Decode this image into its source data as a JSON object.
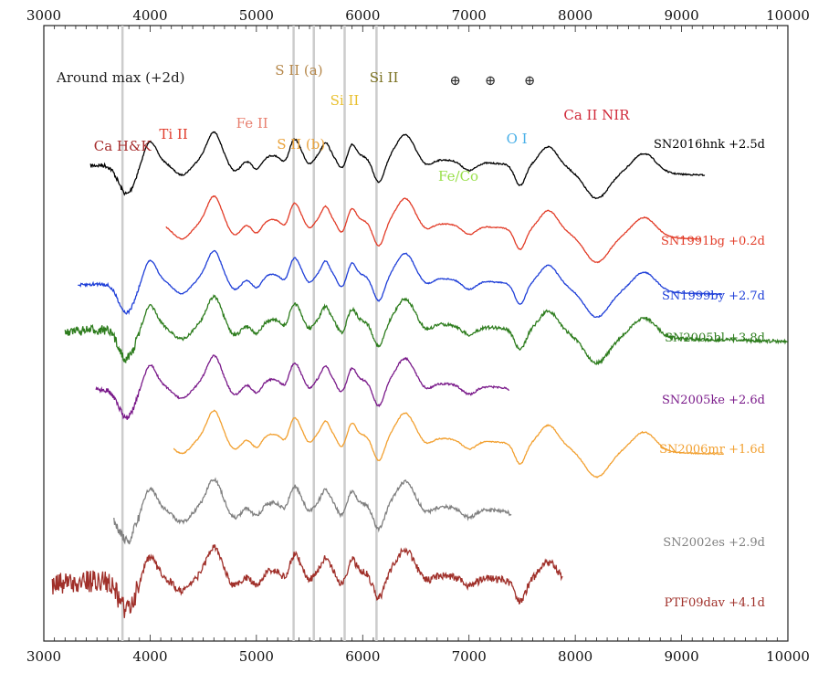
{
  "chart_data": {
    "type": "line",
    "title": "",
    "xlabel": "",
    "ylabel": "",
    "xlim": [
      3000,
      10000
    ],
    "x_ticks": [
      3000,
      4000,
      5000,
      6000,
      7000,
      8000,
      9000,
      10000
    ],
    "x_tick_labels": [
      "3000",
      "4000",
      "5000",
      "6000",
      "7000",
      "8000",
      "9000",
      "10000"
    ],
    "y_ticks_shown": false,
    "grid": false,
    "header_text": "Around max (+2d)",
    "telluric_symbol": "⊕",
    "telluric_x": [
      6870,
      7200,
      7570
    ],
    "vertical_lines_x": [
      3740,
      5350,
      5540,
      5830,
      6130
    ],
    "line_ids": [
      {
        "text": "Ca H&K",
        "x": 3740,
        "color": "#a52a2a"
      },
      {
        "text": "Ti II",
        "x": 4220,
        "color": "#e03a2a"
      },
      {
        "text": "Fe II",
        "x": 4960,
        "color": "#e88070"
      },
      {
        "text": "S II (a)",
        "x": 5400,
        "color": "#b5874a"
      },
      {
        "text": "S II (b)",
        "x": 5420,
        "color": "#e9a23b"
      },
      {
        "text": "Si II",
        "x": 5830,
        "color": "#e9c030"
      },
      {
        "text": "Si II",
        "x": 6200,
        "color": "#7a7020"
      },
      {
        "text": "Fe/Co",
        "x": 6900,
        "color": "#99e04a"
      },
      {
        "text": "O I",
        "x": 7450,
        "color": "#4ab0e8"
      },
      {
        "text": "Ca II NIR",
        "x": 8200,
        "color": "#d02a3a"
      }
    ],
    "series": [
      {
        "name": "SN2016hnk +2.5d",
        "color": "#000000",
        "x_range": [
          3440,
          9220
        ],
        "offset": 0
      },
      {
        "name": "SN1991bg +0.2d",
        "color": "#e23c28",
        "x_range": [
          4150,
          9180
        ],
        "offset": 1
      },
      {
        "name": "SN1999by +2.7d",
        "color": "#1f3fd8",
        "x_range": [
          3320,
          9380
        ],
        "offset": 2
      },
      {
        "name": "SN2005bl +3.8d",
        "color": "#2e7d1e",
        "x_range": [
          3200,
          10000
        ],
        "offset": 3
      },
      {
        "name": "SN2005ke +2.6d",
        "color": "#7a1a8a",
        "x_range": [
          3490,
          7380
        ],
        "offset": 4
      },
      {
        "name": "SN2006mr +1.6d",
        "color": "#f2a030",
        "x_range": [
          4220,
          9400
        ],
        "offset": 5
      },
      {
        "name": "SN2002es +2.9d",
        "color": "#808080",
        "x_range": [
          3660,
          7400
        ],
        "offset": 6
      },
      {
        "name": "PTF09dav +4.1d",
        "color": "#a0302a",
        "x_range": [
          3080,
          7880
        ],
        "offset": 7
      }
    ]
  }
}
